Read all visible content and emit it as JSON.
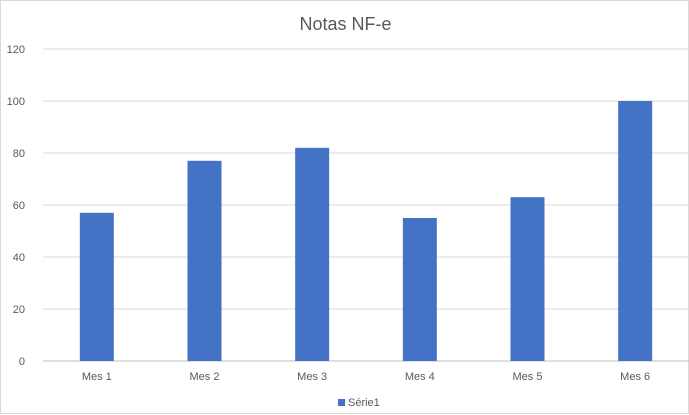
{
  "chart_data": {
    "type": "bar",
    "title": "Notas NF-e",
    "categories": [
      "Mes 1",
      "Mes 2",
      "Mes 3",
      "Mes 4",
      "Mes 5",
      "Mes 6"
    ],
    "series": [
      {
        "name": "Série1",
        "values": [
          57,
          77,
          82,
          55,
          63,
          100
        ],
        "color": "#4472c4"
      }
    ],
    "ylim": [
      0,
      120
    ],
    "yticks": [
      0,
      20,
      40,
      60,
      80,
      100,
      120
    ],
    "grid": true,
    "legend": "bottom"
  }
}
